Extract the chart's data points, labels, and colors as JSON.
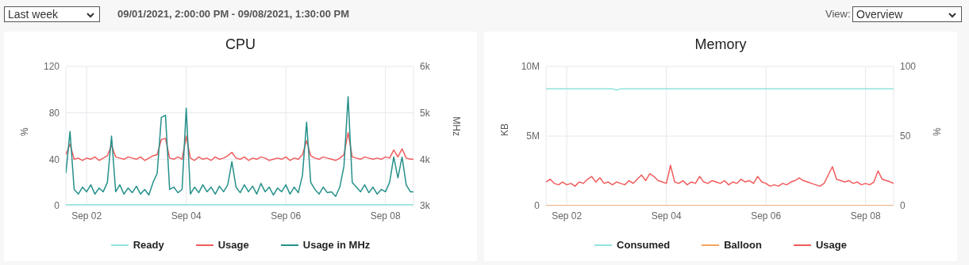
{
  "chart_data": [
    {
      "type": "line",
      "title": "CPU",
      "ylabel": "%",
      "y2label": "MHz",
      "annotations": [
        "Last week",
        "09/01/2021, 2:00:00 PM - 09/08/2021, 1:30:00 PM",
        "View:",
        "Overview"
      ],
      "x": [
        "2021-09-01T14:00",
        "2021-09-01T16:00",
        "2021-09-01T18:00",
        "2021-09-01T20:00",
        "2021-09-01T22:00",
        "2021-09-02T00:00",
        "2021-09-02T02:00",
        "2021-09-02T04:00",
        "2021-09-02T06:00",
        "2021-09-02T08:00",
        "2021-09-02T10:00",
        "2021-09-02T12:00",
        "2021-09-02T14:00",
        "2021-09-02T16:00",
        "2021-09-02T18:00",
        "2021-09-02T20:00",
        "2021-09-02T22:00",
        "2021-09-03T00:00",
        "2021-09-03T02:00",
        "2021-09-03T04:00",
        "2021-09-03T06:00",
        "2021-09-03T08:00",
        "2021-09-03T10:00",
        "2021-09-03T12:00",
        "2021-09-03T14:00",
        "2021-09-03T16:00",
        "2021-09-03T18:00",
        "2021-09-03T20:00",
        "2021-09-03T22:00",
        "2021-09-04T00:00",
        "2021-09-04T02:00",
        "2021-09-04T04:00",
        "2021-09-04T06:00",
        "2021-09-04T08:00",
        "2021-09-04T10:00",
        "2021-09-04T12:00",
        "2021-09-04T14:00",
        "2021-09-04T16:00",
        "2021-09-04T18:00",
        "2021-09-04T20:00",
        "2021-09-04T22:00",
        "2021-09-05T00:00",
        "2021-09-05T02:00",
        "2021-09-05T04:00",
        "2021-09-05T06:00",
        "2021-09-05T08:00",
        "2021-09-05T10:00",
        "2021-09-05T12:00",
        "2021-09-05T14:00",
        "2021-09-05T16:00",
        "2021-09-05T18:00",
        "2021-09-05T20:00",
        "2021-09-05T22:00",
        "2021-09-06T00:00",
        "2021-09-06T02:00",
        "2021-09-06T04:00",
        "2021-09-06T06:00",
        "2021-09-06T08:00",
        "2021-09-06T10:00",
        "2021-09-06T12:00",
        "2021-09-06T14:00",
        "2021-09-06T16:00",
        "2021-09-06T18:00",
        "2021-09-06T20:00",
        "2021-09-06T22:00",
        "2021-09-07T00:00",
        "2021-09-07T02:00",
        "2021-09-07T04:00",
        "2021-09-07T06:00",
        "2021-09-07T08:00",
        "2021-09-07T10:00",
        "2021-09-07T12:00",
        "2021-09-07T14:00",
        "2021-09-07T16:00",
        "2021-09-07T18:00",
        "2021-09-07T20:00",
        "2021-09-07T22:00",
        "2021-09-08T00:00",
        "2021-09-08T02:00",
        "2021-09-08T04:00",
        "2021-09-08T06:00",
        "2021-09-08T08:00",
        "2021-09-08T10:00",
        "2021-09-08T12:00",
        "2021-09-08T13:30"
      ],
      "xlim": [
        "2021-09-01T14:00",
        "2021-09-08T13:30"
      ],
      "xticks": [
        {
          "value": "2021-09-02T00:00",
          "label": "Sep 02"
        },
        {
          "value": "2021-09-04T00:00",
          "label": "Sep 04"
        },
        {
          "value": "2021-09-06T00:00",
          "label": "Sep 06"
        },
        {
          "value": "2021-09-08T00:00",
          "label": "Sep 08"
        }
      ],
      "ylim": [
        0,
        120
      ],
      "yticks": [
        0,
        40,
        80,
        120
      ],
      "y2lim": [
        3000,
        6000
      ],
      "y2ticks": [
        {
          "value": 3000,
          "label": "3k"
        },
        {
          "value": 4000,
          "label": "4k"
        },
        {
          "value": 5000,
          "label": "5k"
        },
        {
          "value": 6000,
          "label": "6k"
        }
      ],
      "grid": true,
      "legend": "bottom",
      "marker": "none",
      "line_style": "solid",
      "series": [
        {
          "name": "Ready",
          "color": "#8ee4dc",
          "values": [
            0.8,
            0.8,
            0.8,
            0.8,
            0.8,
            0.8,
            0.8,
            0.8,
            0.8,
            0.8,
            0.8,
            0.8,
            0.8,
            0.8,
            0.8,
            0.8,
            0.8,
            0.8,
            0.8,
            0.8,
            0.8,
            0.8,
            0.8,
            0.8,
            0.8,
            0.8,
            0.8,
            0.8,
            0.8,
            0.8,
            0.8,
            0.8,
            0.8,
            0.8,
            0.8,
            0.8,
            0.8,
            0.8,
            0.8,
            0.8,
            0.8,
            0.8,
            0.8,
            0.8,
            0.8,
            0.8,
            0.8,
            0.8,
            0.8,
            0.8,
            0.8,
            0.8,
            0.8,
            0.8,
            0.8,
            0.8,
            0.8,
            0.8,
            0.8,
            0.8,
            0.8,
            0.8,
            0.8,
            0.8,
            0.8,
            0.8,
            0.8,
            0.8,
            0.8,
            0.8,
            0.8,
            0.8,
            0.8,
            0.8,
            0.8,
            0.8,
            0.8,
            0.8,
            0.8,
            0.8,
            0.8,
            0.8,
            0.8,
            0.8,
            0.8
          ]
        },
        {
          "name": "Usage",
          "color": "#f15b5b",
          "values": [
            44,
            53,
            40,
            41,
            39,
            41,
            40,
            42,
            39,
            41,
            43,
            52,
            42,
            41,
            40,
            42,
            41,
            40,
            42,
            39,
            41,
            43,
            44,
            57,
            58,
            41,
            40,
            42,
            40,
            60,
            41,
            39,
            42,
            40,
            41,
            39,
            42,
            40,
            41,
            43,
            46,
            41,
            40,
            42,
            39,
            41,
            40,
            42,
            41,
            39,
            40,
            41,
            40,
            42,
            39,
            41,
            40,
            44,
            56,
            43,
            41,
            40,
            42,
            41,
            40,
            39,
            41,
            44,
            63,
            42,
            41,
            40,
            42,
            41,
            40,
            41,
            40,
            42,
            41,
            48,
            42,
            49,
            41,
            40,
            40
          ]
        },
        {
          "name": "Usage in MHz",
          "color": "#25908a",
          "axis": "y2",
          "values": [
            3700,
            4600,
            3350,
            3250,
            3400,
            3300,
            3450,
            3250,
            3380,
            3300,
            3500,
            4500,
            3300,
            3450,
            3250,
            3380,
            3280,
            3420,
            3250,
            3350,
            3230,
            3500,
            3700,
            4900,
            4950,
            3350,
            3400,
            3280,
            3350,
            5100,
            3250,
            3400,
            3280,
            3450,
            3300,
            3400,
            3250,
            3420,
            3300,
            3450,
            3950,
            3400,
            3280,
            3450,
            3300,
            3420,
            3250,
            3480,
            3300,
            3400,
            3230,
            3380,
            3300,
            3450,
            3250,
            3400,
            3280,
            3650,
            4800,
            3500,
            3350,
            3250,
            3400,
            3280,
            3300,
            3200,
            3400,
            3850,
            5350,
            3500,
            3400,
            3300,
            3450,
            3280,
            3400,
            3250,
            3350,
            3300,
            3500,
            4050,
            3600,
            4050,
            3450,
            3300,
            3300
          ]
        }
      ]
    },
    {
      "type": "line",
      "title": "Memory",
      "ylabel": "KB",
      "y2label": "%",
      "x": [
        "2021-09-01T14:00",
        "2021-09-01T16:00",
        "2021-09-01T18:00",
        "2021-09-01T20:00",
        "2021-09-01T22:00",
        "2021-09-02T00:00",
        "2021-09-02T02:00",
        "2021-09-02T04:00",
        "2021-09-02T06:00",
        "2021-09-02T08:00",
        "2021-09-02T10:00",
        "2021-09-02T12:00",
        "2021-09-02T14:00",
        "2021-09-02T16:00",
        "2021-09-02T18:00",
        "2021-09-02T20:00",
        "2021-09-02T22:00",
        "2021-09-03T00:00",
        "2021-09-03T02:00",
        "2021-09-03T04:00",
        "2021-09-03T06:00",
        "2021-09-03T08:00",
        "2021-09-03T10:00",
        "2021-09-03T12:00",
        "2021-09-03T14:00",
        "2021-09-03T16:00",
        "2021-09-03T18:00",
        "2021-09-03T20:00",
        "2021-09-03T22:00",
        "2021-09-04T00:00",
        "2021-09-04T02:00",
        "2021-09-04T04:00",
        "2021-09-04T06:00",
        "2021-09-04T08:00",
        "2021-09-04T10:00",
        "2021-09-04T12:00",
        "2021-09-04T14:00",
        "2021-09-04T16:00",
        "2021-09-04T18:00",
        "2021-09-04T20:00",
        "2021-09-04T22:00",
        "2021-09-05T00:00",
        "2021-09-05T02:00",
        "2021-09-05T04:00",
        "2021-09-05T06:00",
        "2021-09-05T08:00",
        "2021-09-05T10:00",
        "2021-09-05T12:00",
        "2021-09-05T14:00",
        "2021-09-05T16:00",
        "2021-09-05T18:00",
        "2021-09-05T20:00",
        "2021-09-05T22:00",
        "2021-09-06T00:00",
        "2021-09-06T02:00",
        "2021-09-06T04:00",
        "2021-09-06T06:00",
        "2021-09-06T08:00",
        "2021-09-06T10:00",
        "2021-09-06T12:00",
        "2021-09-06T14:00",
        "2021-09-06T16:00",
        "2021-09-06T18:00",
        "2021-09-06T20:00",
        "2021-09-06T22:00",
        "2021-09-07T00:00",
        "2021-09-07T02:00",
        "2021-09-07T04:00",
        "2021-09-07T06:00",
        "2021-09-07T08:00",
        "2021-09-07T10:00",
        "2021-09-07T12:00",
        "2021-09-07T14:00",
        "2021-09-07T16:00",
        "2021-09-07T18:00",
        "2021-09-07T20:00",
        "2021-09-07T22:00",
        "2021-09-08T00:00",
        "2021-09-08T02:00",
        "2021-09-08T04:00",
        "2021-09-08T06:00",
        "2021-09-08T08:00",
        "2021-09-08T10:00",
        "2021-09-08T12:00",
        "2021-09-08T13:30"
      ],
      "xlim": [
        "2021-09-01T14:00",
        "2021-09-08T13:30"
      ],
      "xticks": [
        {
          "value": "2021-09-02T00:00",
          "label": "Sep 02"
        },
        {
          "value": "2021-09-04T00:00",
          "label": "Sep 04"
        },
        {
          "value": "2021-09-06T00:00",
          "label": "Sep 06"
        },
        {
          "value": "2021-09-08T00:00",
          "label": "Sep 08"
        }
      ],
      "ylim": [
        0,
        10000000
      ],
      "yticks": [
        0,
        {
          "value": 5000000,
          "label": "5M"
        },
        {
          "value": 10000000,
          "label": "10M"
        }
      ],
      "y2lim": [
        0,
        100
      ],
      "y2ticks": [
        0,
        50,
        100
      ],
      "grid": true,
      "legend": "bottom",
      "marker": "none",
      "line_style": "solid",
      "series": [
        {
          "name": "Consumed",
          "color": "#8ee4dc",
          "values": [
            8400000,
            8400000,
            8400000,
            8400000,
            8400000,
            8400000,
            8400000,
            8400000,
            8400000,
            8400000,
            8400000,
            8400000,
            8400000,
            8400000,
            8400000,
            8400000,
            8400000,
            8300000,
            8400000,
            8400000,
            8400000,
            8400000,
            8400000,
            8400000,
            8400000,
            8400000,
            8400000,
            8400000,
            8400000,
            8400000,
            8400000,
            8400000,
            8400000,
            8400000,
            8400000,
            8400000,
            8400000,
            8400000,
            8400000,
            8400000,
            8400000,
            8400000,
            8400000,
            8400000,
            8400000,
            8400000,
            8400000,
            8400000,
            8400000,
            8400000,
            8400000,
            8400000,
            8400000,
            8400000,
            8400000,
            8400000,
            8400000,
            8400000,
            8400000,
            8400000,
            8400000,
            8400000,
            8400000,
            8400000,
            8400000,
            8400000,
            8400000,
            8400000,
            8400000,
            8400000,
            8400000,
            8400000,
            8400000,
            8400000,
            8400000,
            8400000,
            8400000,
            8400000,
            8400000,
            8400000,
            8400000,
            8400000,
            8400000,
            8400000,
            8400000
          ]
        },
        {
          "name": "Balloon",
          "color": "#f7a35c",
          "values": [
            0,
            0,
            0,
            0,
            0,
            0,
            0,
            0,
            0,
            0,
            0,
            0,
            0,
            0,
            0,
            0,
            0,
            0,
            0,
            0,
            0,
            0,
            0,
            0,
            0,
            0,
            0,
            0,
            0,
            0,
            0,
            0,
            0,
            0,
            0,
            0,
            0,
            0,
            0,
            0,
            0,
            0,
            0,
            0,
            0,
            0,
            0,
            0,
            0,
            0,
            0,
            0,
            0,
            0,
            0,
            0,
            0,
            0,
            0,
            0,
            0,
            0,
            0,
            0,
            0,
            0,
            0,
            0,
            0,
            0,
            0,
            0,
            0,
            0,
            0,
            0,
            0,
            0,
            0,
            0,
            0,
            0,
            0,
            0,
            0
          ]
        },
        {
          "name": "Usage",
          "color": "#f15b5b",
          "axis": "y2",
          "values": [
            17,
            19,
            16,
            15,
            17,
            15,
            16,
            14,
            17,
            16,
            19,
            21,
            17,
            20,
            16,
            17,
            15,
            17,
            16,
            15,
            18,
            16,
            19,
            22,
            18,
            23,
            21,
            18,
            17,
            16,
            29,
            17,
            16,
            18,
            15,
            17,
            16,
            21,
            17,
            16,
            18,
            17,
            16,
            18,
            15,
            17,
            16,
            19,
            17,
            18,
            16,
            21,
            17,
            16,
            14,
            15,
            14,
            16,
            15,
            17,
            18,
            20,
            18,
            17,
            16,
            15,
            14,
            16,
            22,
            28,
            19,
            18,
            17,
            18,
            16,
            17,
            15,
            16,
            15,
            17,
            25,
            19,
            18,
            17,
            16
          ]
        }
      ]
    }
  ]
}
